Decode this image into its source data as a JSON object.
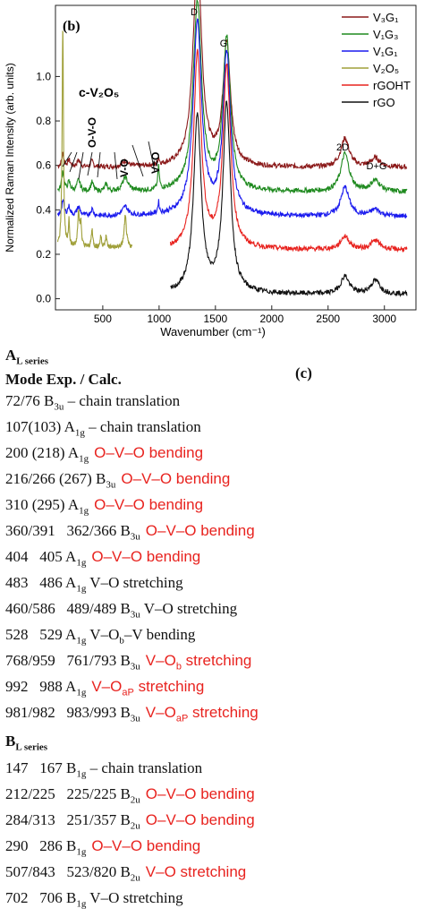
{
  "figure": {
    "panel_label": "(b)",
    "ylabel": "Normalized Raman Intensity (arb. units)",
    "xlabel": "Wavenumber (cm⁻¹)",
    "x_ticks": [
      "500",
      "1000",
      "1500",
      "2000",
      "2500",
      "3000"
    ],
    "y_ticks": [
      "0.0",
      "0.2",
      "0.4",
      "0.6",
      "0.8",
      "1.0"
    ],
    "peak_labels": {
      "d": "D",
      "g": "G",
      "twod": "2D",
      "dg": "D+G"
    },
    "annotations": {
      "cv2o5": "c-V₂O₅",
      "ovo": "O-V-O",
      "vo": "V-O",
      "vdouble": "V=O"
    },
    "legend": [
      {
        "label": "V₃G₁",
        "color": "#8b1a1a"
      },
      {
        "label": "V₁G₃",
        "color": "#1f8a1f"
      },
      {
        "label": "V₁G₁",
        "color": "#1a1aee"
      },
      {
        "label": "V₂O₅",
        "color": "#a0a03a"
      },
      {
        "label": "rGOHT",
        "color": "#e8231f"
      },
      {
        "label": "rGO",
        "color": "#111111"
      }
    ]
  },
  "chart_data": {
    "type": "line",
    "xlabel": "Wavenumber (cm⁻¹)",
    "ylabel": "Normalized Raman Intensity (arb. units)",
    "xlim": [
      80,
      3280
    ],
    "ylim": [
      -0.05,
      1.32
    ],
    "x_ticks": [
      500,
      1000,
      1500,
      2000,
      2500,
      3000
    ],
    "y_ticks": [
      0.0,
      0.2,
      0.4,
      0.6,
      0.8,
      1.0
    ],
    "grid": false,
    "legend_position": "top-right",
    "series": [
      {
        "name": "V₃G₁",
        "color": "#8b1a1a",
        "baseline": 0.59,
        "x_range": [
          100,
          3200
        ],
        "peaks": [
          [
            145,
            0.06,
            12
          ],
          [
            200,
            0.03,
            15
          ],
          [
            285,
            0.03,
            18
          ],
          [
            405,
            0.025,
            15
          ],
          [
            700,
            0.025,
            30
          ],
          [
            995,
            0.03,
            8
          ],
          [
            1340,
            0.95,
            45
          ],
          [
            1600,
            0.55,
            40
          ],
          [
            2650,
            0.13,
            45
          ],
          [
            2920,
            0.04,
            50
          ]
        ]
      },
      {
        "name": "V₁G₃",
        "color": "#1f8a1f",
        "baseline": 0.48,
        "x_range": [
          100,
          3200
        ],
        "peaks": [
          [
            145,
            0.09,
            12
          ],
          [
            200,
            0.04,
            15
          ],
          [
            285,
            0.05,
            18
          ],
          [
            405,
            0.04,
            15
          ],
          [
            530,
            0.03,
            15
          ],
          [
            700,
            0.06,
            30
          ],
          [
            995,
            0.1,
            8
          ],
          [
            1340,
            0.85,
            45
          ],
          [
            1600,
            0.68,
            40
          ],
          [
            2650,
            0.17,
            45
          ],
          [
            2920,
            0.05,
            50
          ]
        ]
      },
      {
        "name": "V₁G₁",
        "color": "#1a1aee",
        "baseline": 0.37,
        "x_range": [
          100,
          3200
        ],
        "peaks": [
          [
            145,
            0.07,
            12
          ],
          [
            200,
            0.04,
            15
          ],
          [
            285,
            0.04,
            18
          ],
          [
            405,
            0.03,
            15
          ],
          [
            700,
            0.04,
            30
          ],
          [
            995,
            0.05,
            8
          ],
          [
            1340,
            0.87,
            45
          ],
          [
            1600,
            0.73,
            40
          ],
          [
            2650,
            0.13,
            45
          ],
          [
            2920,
            0.03,
            50
          ]
        ]
      },
      {
        "name": "V₂O₅",
        "color": "#a0a03a",
        "baseline": 0.23,
        "x_range": [
          100,
          760
        ],
        "peaks": [
          [
            145,
            1.0,
            7
          ],
          [
            200,
            0.12,
            6
          ],
          [
            285,
            0.16,
            9
          ],
          [
            305,
            0.1,
            8
          ],
          [
            405,
            0.08,
            8
          ],
          [
            483,
            0.05,
            8
          ],
          [
            530,
            0.05,
            8
          ],
          [
            700,
            0.14,
            12
          ]
        ]
      },
      {
        "name": "rGOHT",
        "color": "#e8231f",
        "baseline": 0.22,
        "x_range": [
          1100,
          3200
        ],
        "peaks": [
          [
            1340,
            0.88,
            40
          ],
          [
            1600,
            0.82,
            40
          ],
          [
            2650,
            0.06,
            45
          ],
          [
            2920,
            0.04,
            50
          ]
        ]
      },
      {
        "name": "rGO",
        "color": "#111111",
        "baseline": 0.02,
        "x_range": [
          1100,
          3200
        ],
        "peaks": [
          [
            1340,
            0.8,
            40
          ],
          [
            1600,
            0.85,
            40
          ],
          [
            2650,
            0.08,
            45
          ],
          [
            2920,
            0.06,
            50
          ]
        ]
      }
    ]
  },
  "table": {
    "panel_label": "(c)",
    "a_series": {
      "letter": "A",
      "sub": "L series"
    },
    "mode_header": "Mode Exp. / Calc.",
    "b_series": {
      "letter": "B",
      "sub": "L series"
    },
    "rows_a": [
      {
        "values": "72/76 B",
        "sym": "3u",
        "desc": " – chain translation",
        "red": false
      },
      {
        "values": "107(103) A",
        "sym": "1g",
        "desc": " – chain translation",
        "red": false
      },
      {
        "values": "200 (218) A",
        "sym": "1g",
        "desc": "O–V–O bending",
        "red": true
      },
      {
        "values": "216/266 (267) B",
        "sym": "3u",
        "desc": "O–V–O bending",
        "red": true
      },
      {
        "values": "310 (295) A",
        "sym": "1g",
        "desc": "O–V–O bending",
        "red": true
      },
      {
        "values": "360/391   362/366 B",
        "sym": "3u",
        "desc": "O–V–O bending",
        "red": true
      },
      {
        "values": "404   405 A",
        "sym": "1g",
        "desc": "O–V–O bending",
        "red": true
      },
      {
        "values": "483   486 A",
        "sym": "1g",
        "desc": " V–O stretching",
        "red": false
      },
      {
        "values": "460/586   489/489 B",
        "sym": "3u",
        "desc": " V–O stretching",
        "red": false
      },
      {
        "values": "528   529 A",
        "sym": "1g",
        "desc": " V–O",
        "desc_sub": "b",
        "desc_tail": "–V bending",
        "red": false
      },
      {
        "values": "768/959   761/793 B",
        "sym": "3u",
        "desc": "V–O",
        "desc_sub": "b",
        "desc_tail": " stretching",
        "red": true
      },
      {
        "values": "992   988 A",
        "sym": "1g",
        "desc": "V–O",
        "desc_sub": "aP",
        "desc_tail": " stretching",
        "red": true
      },
      {
        "values": "981/982   983/993 B",
        "sym": "3u",
        "desc": "V–O",
        "desc_sub": "aP",
        "desc_tail": " stretching",
        "red": true
      }
    ],
    "rows_b": [
      {
        "values": "147   167 B",
        "sym": "1g",
        "desc": " – chain translation",
        "red": false
      },
      {
        "values": "212/225   225/225 B",
        "sym": "2u",
        "desc": "O–V–O bending",
        "red": true
      },
      {
        "values": "284/313   251/357 B",
        "sym": "2u",
        "desc": "O–V–O bending",
        "red": true
      },
      {
        "values": "290   286 B",
        "sym": "1g",
        "desc": "O–V–O bending",
        "red": true
      },
      {
        "values": "507/843   523/820 B",
        "sym": "2u",
        "desc": "V–O stretching",
        "red": true
      },
      {
        "values": "702   706 B",
        "sym": "1g",
        "desc": " V–O stretching",
        "red": false
      }
    ]
  }
}
